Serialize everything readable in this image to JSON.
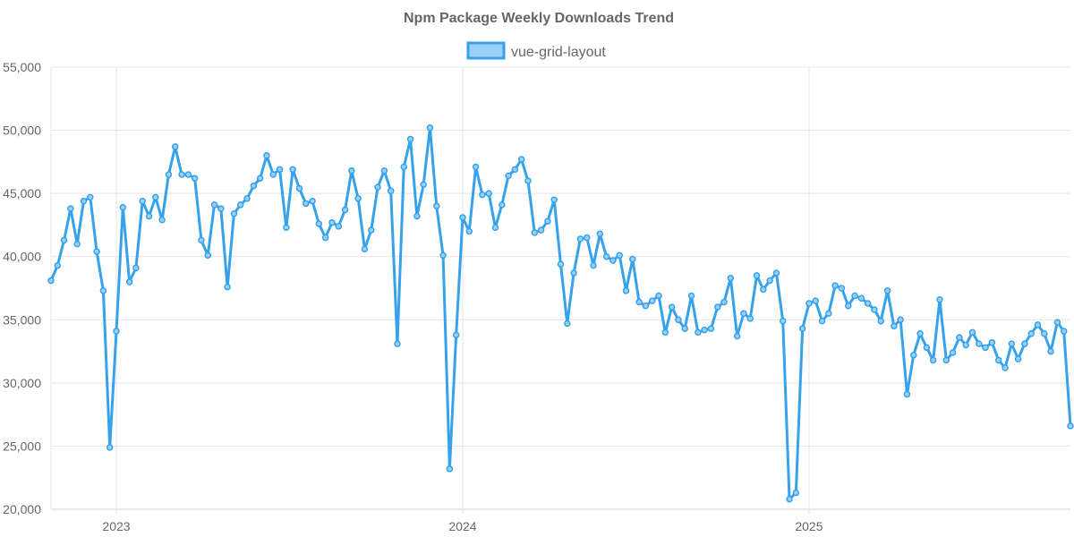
{
  "chart_data": {
    "type": "line",
    "title": "Npm Package Weekly Downloads Trend",
    "xlabel": "",
    "ylabel": "",
    "ylim": [
      20000,
      55000
    ],
    "yticks": [
      20000,
      25000,
      30000,
      35000,
      40000,
      45000,
      50000,
      55000
    ],
    "ytick_labels": [
      "20,000",
      "25,000",
      "30,000",
      "35,000",
      "40,000",
      "45,000",
      "50,000",
      "55,000"
    ],
    "xticks": [
      {
        "label": "2023",
        "index": 10
      },
      {
        "label": "2024",
        "index": 63
      },
      {
        "label": "2025",
        "index": 116
      }
    ],
    "legend_position": "top-center",
    "grid": true,
    "series": [
      {
        "name": "vue-grid-layout",
        "color": "#36a2eb",
        "fill": "#9ad0f5",
        "values": [
          38100,
          39300,
          41300,
          43800,
          41000,
          44400,
          44700,
          40400,
          37300,
          24900,
          34100,
          43900,
          38000,
          39100,
          44400,
          43200,
          44700,
          42900,
          46500,
          48700,
          46500,
          46500,
          46200,
          41300,
          40100,
          44100,
          43800,
          37600,
          43400,
          44100,
          44600,
          45600,
          46200,
          48000,
          46500,
          46900,
          42300,
          46900,
          45400,
          44200,
          44400,
          42600,
          41500,
          42700,
          42400,
          43700,
          46800,
          44600,
          40600,
          42100,
          45500,
          46800,
          45200,
          33100,
          47100,
          49300,
          43200,
          45700,
          50200,
          44000,
          40100,
          23200,
          33800,
          43100,
          42000,
          47100,
          44900,
          45000,
          42300,
          44100,
          46400,
          46900,
          47700,
          46000,
          41900,
          42100,
          42800,
          44500,
          39400,
          34700,
          38700,
          41400,
          41500,
          39300,
          41800,
          40000,
          39700,
          40100,
          37300,
          39800,
          36400,
          36100,
          36500,
          36900,
          34000,
          36000,
          35000,
          34300,
          36900,
          34000,
          34200,
          34300,
          36000,
          36400,
          38300,
          33700,
          35500,
          35100,
          38500,
          37400,
          38100,
          38700,
          34900,
          20800,
          21300,
          34300,
          36300,
          36500,
          34900,
          35500,
          37700,
          37500,
          36100,
          36900,
          36700,
          36300,
          35800,
          34900,
          37300,
          34500,
          35000,
          29100,
          32200,
          33900,
          32800,
          31800,
          36600,
          31800,
          32400,
          33600,
          33000,
          34000,
          33100,
          32800,
          33200,
          31800,
          31200,
          33100,
          31900,
          33100,
          33900,
          34600,
          33900,
          32500,
          34800,
          34100,
          26600
        ]
      }
    ]
  }
}
